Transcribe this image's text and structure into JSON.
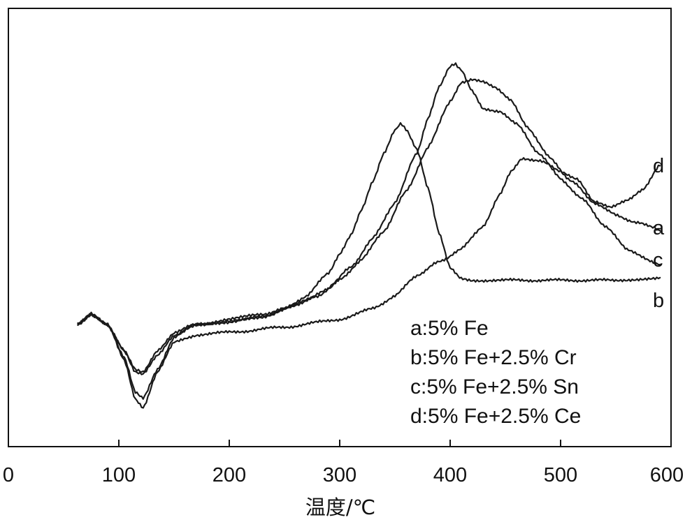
{
  "chart_data": {
    "type": "line",
    "xlabel": "温度/℃",
    "ylabel": "",
    "xlim": [
      0,
      600
    ],
    "x_ticks": [
      "0",
      "100",
      "200",
      "300",
      "400",
      "500",
      "600"
    ],
    "grid": false,
    "legend_position": "bottom-right",
    "legend": [
      "a:5% Fe",
      "b:5% Fe+2.5% Cr",
      "c:5% Fe+2.5% Sn",
      "d:5% Fe+2.5% Ce"
    ],
    "series": [
      {
        "name": "a",
        "x": [
          63,
          75,
          90,
          105,
          115,
          122,
          135,
          150,
          170,
          200,
          230,
          250,
          280,
          300,
          320,
          340,
          360,
          380,
          400,
          410,
          420,
          430,
          440,
          455,
          470,
          490,
          510,
          530,
          550,
          570,
          585,
          590
        ],
        "y": [
          0.0,
          0.04,
          0.0,
          -0.1,
          -0.18,
          -0.19,
          -0.12,
          -0.04,
          0.0,
          0.01,
          0.03,
          0.06,
          0.11,
          0.17,
          0.25,
          0.36,
          0.51,
          0.68,
          0.86,
          0.93,
          0.94,
          0.93,
          0.91,
          0.86,
          0.76,
          0.64,
          0.55,
          0.47,
          0.42,
          0.39,
          0.37,
          0.36
        ]
      },
      {
        "name": "b",
        "x": [
          63,
          75,
          90,
          105,
          115,
          122,
          135,
          150,
          170,
          200,
          230,
          250,
          270,
          290,
          300,
          310,
          320,
          330,
          340,
          350,
          355,
          360,
          370,
          380,
          390,
          400,
          410,
          420,
          450,
          500,
          550,
          590
        ],
        "y": [
          0.0,
          0.04,
          0.0,
          -0.1,
          -0.17,
          -0.18,
          -0.1,
          -0.03,
          0.0,
          0.02,
          0.04,
          0.06,
          0.11,
          0.2,
          0.27,
          0.34,
          0.44,
          0.55,
          0.66,
          0.75,
          0.77,
          0.75,
          0.67,
          0.52,
          0.35,
          0.22,
          0.18,
          0.17,
          0.17,
          0.17,
          0.17,
          0.18
        ]
      },
      {
        "name": "c",
        "x": [
          63,
          75,
          90,
          105,
          115,
          122,
          135,
          150,
          170,
          200,
          230,
          260,
          290,
          310,
          330,
          350,
          370,
          380,
          390,
          400,
          405,
          410,
          420,
          430,
          445,
          460,
          480,
          500,
          520,
          540,
          560,
          590
        ],
        "y": [
          0.0,
          0.04,
          0.0,
          -0.13,
          -0.26,
          -0.28,
          -0.17,
          -0.05,
          0.0,
          0.01,
          0.03,
          0.07,
          0.14,
          0.22,
          0.33,
          0.47,
          0.66,
          0.79,
          0.91,
          0.99,
          1.0,
          0.98,
          0.9,
          0.83,
          0.82,
          0.77,
          0.66,
          0.56,
          0.48,
          0.38,
          0.29,
          0.23
        ]
      },
      {
        "name": "d",
        "x": [
          63,
          75,
          90,
          105,
          115,
          122,
          135,
          150,
          170,
          200,
          250,
          300,
          330,
          350,
          370,
          390,
          410,
          430,
          445,
          455,
          465,
          480,
          500,
          515,
          530,
          545,
          560,
          575,
          590
        ],
        "y": [
          0.0,
          0.04,
          0.0,
          -0.14,
          -0.29,
          -0.32,
          -0.18,
          -0.07,
          -0.04,
          -0.03,
          -0.01,
          0.02,
          0.06,
          0.11,
          0.19,
          0.24,
          0.29,
          0.38,
          0.5,
          0.59,
          0.64,
          0.63,
          0.59,
          0.56,
          0.47,
          0.45,
          0.48,
          0.52,
          0.61
        ]
      }
    ]
  },
  "curve_labels": [
    "d",
    "a",
    "c",
    "b"
  ]
}
